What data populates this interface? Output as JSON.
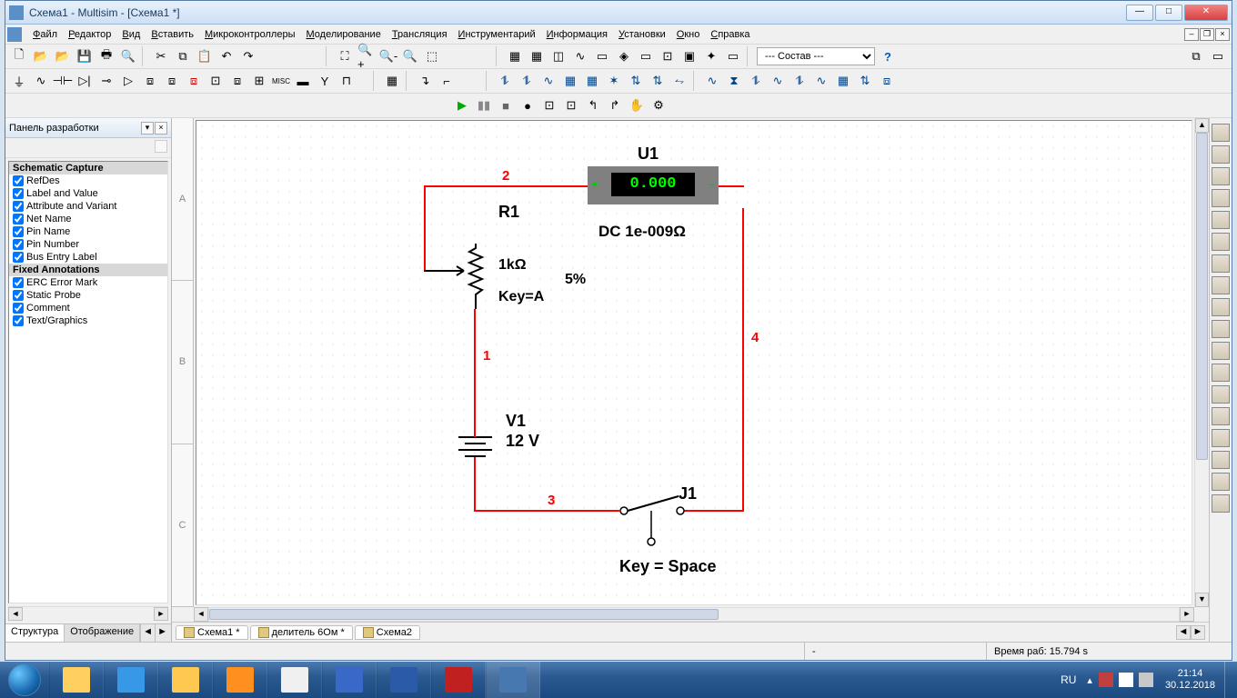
{
  "title": "Схема1 - Multisim - [Схема1 *]",
  "menu": [
    "Файл",
    "Редактор",
    "Вид",
    "Вставить",
    "Микроконтроллеры",
    "Моделирование",
    "Трансляция",
    "Инструментарий",
    "Информация",
    "Установки",
    "Окно",
    "Справка"
  ],
  "toolbar_select": "--- Состав ---",
  "leftpanel": {
    "title": "Панель разработки",
    "group1": "Schematic Capture",
    "items1": [
      "RefDes",
      "Label and Value",
      "Attribute and Variant",
      "Net Name",
      "Pin Name",
      "Pin Number",
      "Bus Entry Label"
    ],
    "group2": "Fixed Annotations",
    "items2": [
      "ERC Error Mark",
      "Static Probe",
      "Comment",
      "Text/Graphics"
    ],
    "tabs": [
      "Структура",
      "Отображение"
    ]
  },
  "ruler_rows": [
    "A",
    "B",
    "C"
  ],
  "circuit": {
    "u1_ref": "U1",
    "u1_reading": "0.000",
    "u1_mode": "DC  1e-009Ω",
    "r1_ref": "R1",
    "r1_val": "1kΩ",
    "r1_key": "Key=A",
    "r1_tol": "5%",
    "v1_ref": "V1",
    "v1_val": "12 V",
    "j1_ref": "J1",
    "j1_key": "Key = Space",
    "net1": "1",
    "net2": "2",
    "net3": "3",
    "net4": "4",
    "wire_color": "#ff0000"
  },
  "doctabs": [
    "Схема1 *",
    "делитель 6Ом *",
    "Схема2"
  ],
  "status": {
    "time_label": "Время раб: 15.794 s"
  },
  "taskbar": {
    "lang": "RU",
    "clock_time": "21:14",
    "clock_date": "30.12.2018",
    "apps": [
      {
        "name": "explorer",
        "color": "#ffd060"
      },
      {
        "name": "ie",
        "color": "#3898e8"
      },
      {
        "name": "folder",
        "color": "#ffc850"
      },
      {
        "name": "media",
        "color": "#ff9020"
      },
      {
        "name": "chrome",
        "color": "#f0f0f0"
      },
      {
        "name": "save",
        "color": "#3868c8"
      },
      {
        "name": "word",
        "color": "#2a5aa8"
      },
      {
        "name": "app1",
        "color": "#c02020"
      },
      {
        "name": "multisim",
        "color": "#4878b0"
      }
    ]
  }
}
